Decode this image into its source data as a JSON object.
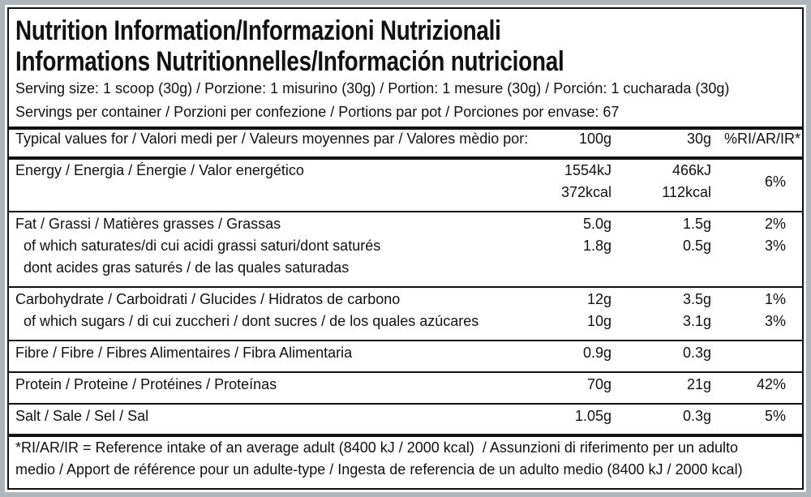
{
  "title": [
    "Nutrition Information/Informazioni Nutrizionali",
    "Informations Nutritionnelles/Información nutricional"
  ],
  "serving_info": [
    "Serving size: 1 scoop (30g) / Porzione: 1 misurino (30g) / Portion: 1 mesure (30g) / Porción: 1 cucharada (30g)",
    "Servings per container / Porzioni per confezione / Portions par pot / Porciones por envase: 67"
  ],
  "table": {
    "header": {
      "label": "Typical values for / Valori medi per / Valeurs moyennes par / Valores mèdio por:",
      "per_100g": "100g",
      "per_30g": "30g",
      "ri": "%RI/AR/IR*"
    },
    "groups": [
      {
        "lines": [
          {
            "label": "Energy / Energia / Énergie / Valor energético",
            "per_100g": "1554kJ",
            "per_30g": "466kJ",
            "ri": "6%"
          },
          {
            "per_100g": "372kcal",
            "per_30g": "112kcal"
          }
        ]
      },
      {
        "lines": [
          {
            "label": "Fat / Grassi / Matières grasses / Grassas",
            "per_100g": "5.0g",
            "per_30g": "1.5g",
            "ri": "2%"
          },
          {
            "label": "of which saturates/di cui acidi grassi saturi/dont saturés",
            "per_100g": "1.8g",
            "per_30g": "0.5g",
            "ri": "3%"
          },
          {
            "label": "dont acides gras saturés / de las quales saturadas"
          }
        ]
      },
      {
        "lines": [
          {
            "label": "Carbohydrate / Carboidrati / Glucides / Hidratos de carbono",
            "per_100g": "12g",
            "per_30g": "3.5g",
            "ri": "1%"
          },
          {
            "label": "of which sugars / di cui zuccheri / dont sucres / de los quales azúcares",
            "per_100g": "10g",
            "per_30g": "3.1g",
            "ri": "3%"
          }
        ]
      },
      {
        "lines": [
          {
            "label": "Fibre / Fibre / Fibres Alimentaires / Fibra Alimentaria",
            "per_100g": "0.9g",
            "per_30g": "0.3g"
          }
        ]
      },
      {
        "lines": [
          {
            "label": "Protein / Proteine / Protéines / Proteínas",
            "per_100g": "70g",
            "per_30g": "21g",
            "ri": "42%"
          }
        ]
      },
      {
        "lines": [
          {
            "label": "Salt / Sale / Sel / Sal",
            "per_100g": "1.05g",
            "per_30g": "0.3g",
            "ri": "5%"
          }
        ]
      }
    ]
  },
  "footnote": [
    "*RI/AR/IR = Reference intake of an average adult (8400 kJ / 2000 kcal)  / Assunzioni di riferimento per un adulto",
    "medio / Apport de référence pour un adulte-type / Ingesta de referencia de un adulto medio (8400 kJ / 2000 kcal)"
  ]
}
